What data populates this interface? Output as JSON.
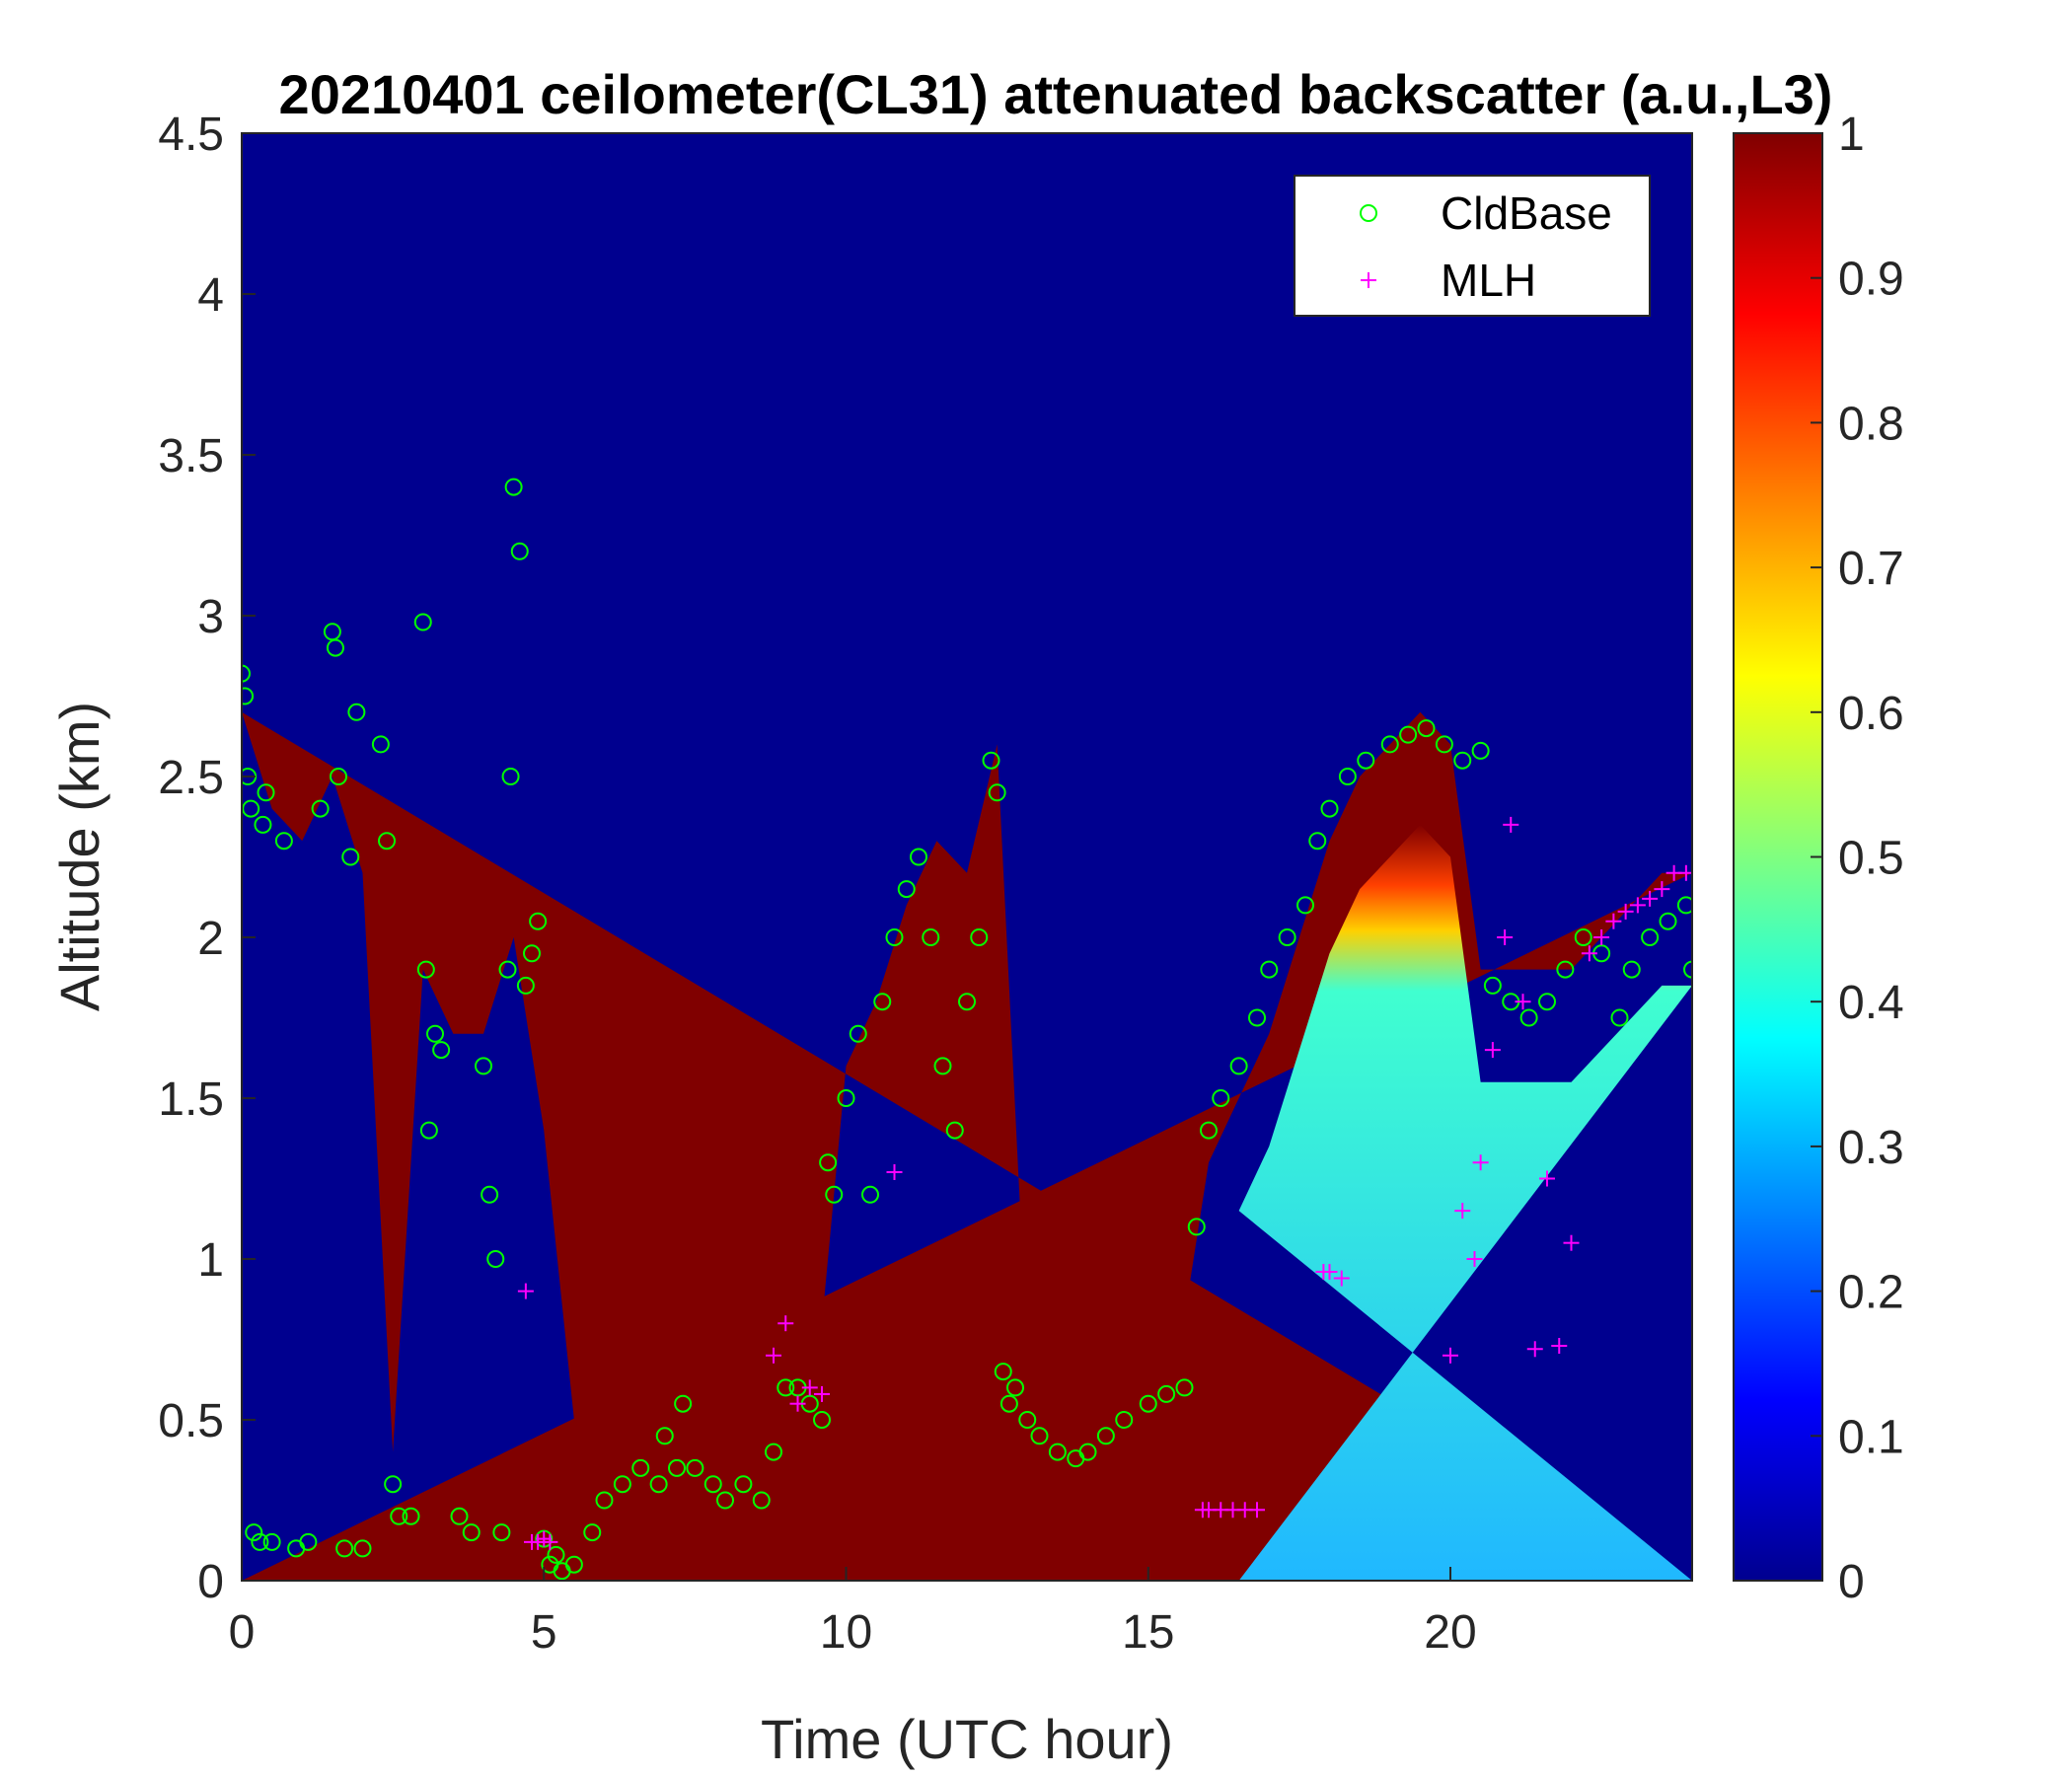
{
  "chart_data": {
    "type": "heatmap",
    "title": "20210401 ceilometer(CL31) attenuated backscatter (a.u.,L3)",
    "xlabel": "Time (UTC hour)",
    "ylabel": "Altitude (km)",
    "xlim": [
      0,
      24
    ],
    "ylim": [
      0,
      4.5
    ],
    "xticks": [
      "0",
      "5",
      "10",
      "15",
      "20"
    ],
    "yticks": [
      "0",
      "0.5",
      "1",
      "1.5",
      "2",
      "2.5",
      "3",
      "3.5",
      "4",
      "4.5"
    ],
    "colorbar": {
      "colormap": "jet",
      "range": [
        0,
        1
      ],
      "ticks": [
        "0",
        "0.1",
        "0.2",
        "0.3",
        "0.4",
        "0.5",
        "0.6",
        "0.7",
        "0.8",
        "0.9",
        "1"
      ]
    },
    "heatmap_boundary_layer_top_km": {
      "x": [
        0,
        0.5,
        1,
        1.5,
        2,
        2.5,
        3,
        3.5,
        4,
        4.5,
        5,
        5.5,
        6,
        6.5,
        7,
        7.5,
        8,
        8.5,
        9,
        9.5,
        10,
        10.5,
        11,
        11.5,
        12,
        12.5,
        13,
        13.5,
        14,
        14.5,
        15,
        15.5,
        16,
        16.5,
        17,
        17.5,
        18,
        18.5,
        19,
        19.5,
        20,
        20.5,
        21,
        21.5,
        22,
        22.5,
        23,
        23.5,
        24
      ],
      "y": [
        2.7,
        2.4,
        2.3,
        2.5,
        2.2,
        0.4,
        1.9,
        1.7,
        1.7,
        2.0,
        1.4,
        0.5,
        0.3,
        0.5,
        0.6,
        0.5,
        0.5,
        0.5,
        0.7,
        0.6,
        1.6,
        1.8,
        2.1,
        2.3,
        2.2,
        2.6,
        0.7,
        0.6,
        0.45,
        0.5,
        0.6,
        0.7,
        1.3,
        1.5,
        1.7,
        2.0,
        2.3,
        2.5,
        2.6,
        2.7,
        2.6,
        1.9,
        1.9,
        1.9,
        1.9,
        2.0,
        2.1,
        2.2,
        2.2
      ]
    },
    "series": [
      {
        "name": "CldBase",
        "marker": "circle",
        "color": "#00ff00",
        "x": [
          0.0,
          0.05,
          0.1,
          0.15,
          0.2,
          0.3,
          0.35,
          0.4,
          0.5,
          0.7,
          0.9,
          1.1,
          1.3,
          1.5,
          1.55,
          1.6,
          1.7,
          1.8,
          1.9,
          2.0,
          2.3,
          2.4,
          2.5,
          2.6,
          2.8,
          3.0,
          3.05,
          3.1,
          3.2,
          3.3,
          3.6,
          3.8,
          4.0,
          4.1,
          4.2,
          4.3,
          4.4,
          4.45,
          4.5,
          4.6,
          4.7,
          4.8,
          4.9,
          5.0,
          5.1,
          5.2,
          5.3,
          5.5,
          5.8,
          6.0,
          6.3,
          6.6,
          6.9,
          7.0,
          7.2,
          7.3,
          7.5,
          7.8,
          8.0,
          8.3,
          8.6,
          8.8,
          9.0,
          9.2,
          9.4,
          9.6,
          9.7,
          9.8,
          10.0,
          10.2,
          10.4,
          10.6,
          10.8,
          11.0,
          11.2,
          11.4,
          11.6,
          11.8,
          12.0,
          12.2,
          12.4,
          12.5,
          12.6,
          12.7,
          12.8,
          13.0,
          13.2,
          13.5,
          13.8,
          14.0,
          14.3,
          14.6,
          15.0,
          15.3,
          15.6,
          15.8,
          16.0,
          16.2,
          16.5,
          16.8,
          17.0,
          17.3,
          17.6,
          17.8,
          18.0,
          18.3,
          18.6,
          19.0,
          19.3,
          19.6,
          19.9,
          20.2,
          20.5,
          20.7,
          21.0,
          21.3,
          21.6,
          21.9,
          22.2,
          22.5,
          22.8,
          23.0,
          23.3,
          23.6,
          23.9,
          24.0
        ],
        "y": [
          2.82,
          2.75,
          2.5,
          2.4,
          0.15,
          0.12,
          2.35,
          2.45,
          0.12,
          2.3,
          0.1,
          0.12,
          2.4,
          2.95,
          2.9,
          2.5,
          0.1,
          2.25,
          2.7,
          0.1,
          2.6,
          2.3,
          0.3,
          0.2,
          0.2,
          2.98,
          1.9,
          1.4,
          1.7,
          1.65,
          0.2,
          0.15,
          1.6,
          1.2,
          1.0,
          0.15,
          1.9,
          2.5,
          3.4,
          3.2,
          1.85,
          1.95,
          2.05,
          0.13,
          0.05,
          0.08,
          0.03,
          0.05,
          0.15,
          0.25,
          0.3,
          0.35,
          0.3,
          0.45,
          0.35,
          0.55,
          0.35,
          0.3,
          0.25,
          0.3,
          0.25,
          0.4,
          0.6,
          0.6,
          0.55,
          0.5,
          1.3,
          1.2,
          1.5,
          1.7,
          1.2,
          1.8,
          2.0,
          2.15,
          2.25,
          2.0,
          1.6,
          1.4,
          1.8,
          2.0,
          2.55,
          2.45,
          0.65,
          0.55,
          0.6,
          0.5,
          0.45,
          0.4,
          0.38,
          0.4,
          0.45,
          0.5,
          0.55,
          0.58,
          0.6,
          1.1,
          1.4,
          1.5,
          1.6,
          1.75,
          1.9,
          2.0,
          2.1,
          2.3,
          2.4,
          2.5,
          2.55,
          2.6,
          2.63,
          2.65,
          2.6,
          2.55,
          2.58,
          1.85,
          1.8,
          1.75,
          1.8,
          1.9,
          2.0,
          1.95,
          1.75,
          1.9,
          2.0,
          2.05,
          2.1,
          1.9
        ]
      },
      {
        "name": "MLH",
        "marker": "plus",
        "color": "#ff00ff",
        "x": [
          4.7,
          4.8,
          4.9,
          5.0,
          5.1,
          8.8,
          9.0,
          9.2,
          9.4,
          9.6,
          10.8,
          15.9,
          16.0,
          16.2,
          16.4,
          16.6,
          16.8,
          17.9,
          18.0,
          18.2,
          20.0,
          20.2,
          20.4,
          20.5,
          20.7,
          20.9,
          21.0,
          21.2,
          21.4,
          21.6,
          21.8,
          22.0,
          22.3,
          22.5,
          22.7,
          22.9,
          23.1,
          23.3,
          23.5,
          23.7,
          23.9
        ],
        "y": [
          0.9,
          0.12,
          0.12,
          0.13,
          0.12,
          0.7,
          0.8,
          0.55,
          0.6,
          0.58,
          1.27,
          0.22,
          0.22,
          0.22,
          0.22,
          0.22,
          0.22,
          0.96,
          0.96,
          0.94,
          0.7,
          1.15,
          1.0,
          1.3,
          1.65,
          2.0,
          2.35,
          1.8,
          0.72,
          1.25,
          0.73,
          1.05,
          1.95,
          2.0,
          2.05,
          2.08,
          2.1,
          2.12,
          2.15,
          2.2,
          2.2
        ]
      }
    ],
    "legend": {
      "position": "top-right",
      "entries": [
        "CldBase",
        "MLH"
      ]
    }
  }
}
